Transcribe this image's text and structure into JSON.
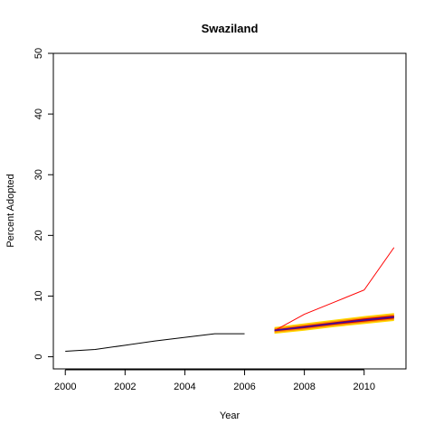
{
  "chart_data": {
    "type": "line",
    "title": "Swaziland",
    "xlabel": "Year",
    "ylabel": "Percent Adopted",
    "xlim": [
      1999.6,
      2011.4
    ],
    "ylim": [
      -2,
      50
    ],
    "x_ticks": [
      2000,
      2002,
      2004,
      2006,
      2008,
      2010
    ],
    "y_ticks": [
      0,
      10,
      20,
      30,
      40,
      50
    ],
    "grid": false,
    "legend": "none",
    "series": [
      {
        "color": "#000000",
        "x": [
          2000,
          2001,
          2002,
          2003,
          2004,
          2005,
          2006
        ],
        "y": [
          0.9,
          1.2,
          1.9,
          2.6,
          3.2,
          3.8,
          3.8
        ]
      },
      {
        "color": "#ff0000",
        "x": [
          2007,
          2008,
          2009,
          2010,
          2011
        ],
        "y": [
          4.3,
          7.0,
          9.0,
          11.0,
          18.0
        ]
      }
    ],
    "projection": {
      "x": [
        2007,
        2008,
        2009,
        2010,
        2011
      ],
      "bands": [
        {
          "color": "#ffd700",
          "lower": [
            3.8,
            4.3,
            4.9,
            5.4,
            5.9
          ],
          "upper": [
            4.9,
            5.5,
            6.1,
            6.7,
            7.2
          ]
        },
        {
          "color": "#ff8c00",
          "lower": [
            4.0,
            4.5,
            5.1,
            5.6,
            6.1
          ],
          "upper": [
            4.7,
            5.3,
            5.9,
            6.5,
            7.0
          ]
        },
        {
          "color": "#cc0000",
          "lower": [
            4.2,
            4.7,
            5.3,
            5.8,
            6.3
          ],
          "upper": [
            4.5,
            5.1,
            5.7,
            6.3,
            6.8
          ]
        }
      ],
      "median": {
        "color": "#3a0ca3",
        "y": [
          4.35,
          4.9,
          5.5,
          6.05,
          6.55
        ]
      }
    }
  }
}
